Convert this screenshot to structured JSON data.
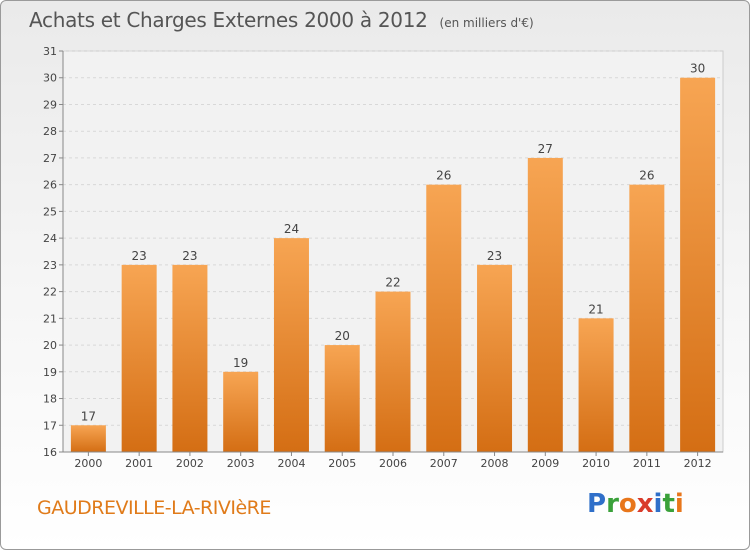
{
  "title": "Achats et Charges Externes 2000 à 2012",
  "unit_label": "(en milliers d'€)",
  "town": "GAUDREVILLE-LA-RIVIèRE",
  "logo": {
    "letters": [
      "P",
      "r",
      "o",
      "x",
      "i",
      "t",
      "i"
    ],
    "colors": [
      "#2f6fc9",
      "#3aa13a",
      "#e8761b",
      "#d93b2b",
      "#2f6fc9",
      "#3aa13a",
      "#e8761b"
    ]
  },
  "colors": {
    "bar": "#f59b3f",
    "bar_dark": "#d46e14",
    "town": "#e07b1a"
  },
  "chart_data": {
    "type": "bar",
    "categories": [
      "2000",
      "2001",
      "2002",
      "2003",
      "2004",
      "2005",
      "2006",
      "2007",
      "2008",
      "2009",
      "2010",
      "2011",
      "2012"
    ],
    "values": [
      17,
      23,
      23,
      19,
      24,
      20,
      22,
      26,
      23,
      27,
      21,
      26,
      30
    ],
    "ylim": [
      16,
      31
    ],
    "yticks": [
      16,
      17,
      18,
      19,
      20,
      21,
      22,
      23,
      24,
      25,
      26,
      27,
      28,
      29,
      30,
      31
    ],
    "grid": true,
    "xlabel": "",
    "ylabel": ""
  }
}
